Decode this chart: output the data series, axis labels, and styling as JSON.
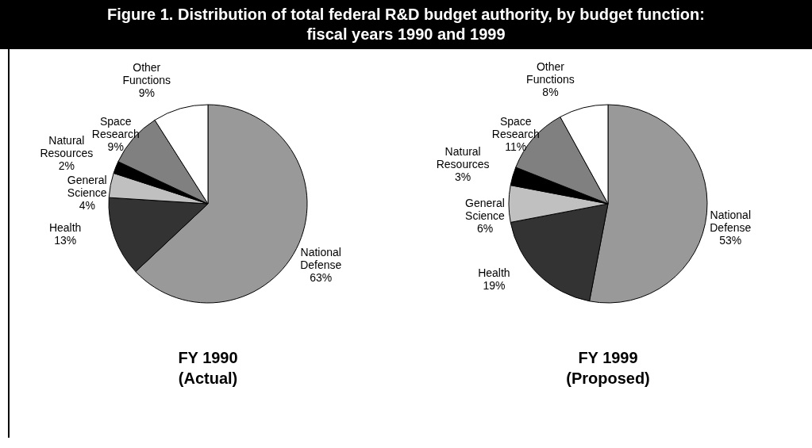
{
  "chart_data": [
    {
      "type": "pie",
      "title": "Figure 1.  Distribution of total federal R&D budget authority, by budget function: fiscal years 1990 and 1999",
      "xlabel": "FY 1990\n(Actual)",
      "categories": [
        "National Defense",
        "Health",
        "General Science",
        "Natural Resources",
        "Space Research",
        "Other Functions"
      ],
      "values": [
        63,
        13,
        4,
        2,
        9,
        9
      ],
      "value_labels": [
        "63%",
        "13%",
        "4%",
        "2%",
        "9%",
        "9%"
      ],
      "colors": [
        "#999999",
        "#333333",
        "#c0c0c0",
        "#000000",
        "#808080",
        "#ffffff"
      ],
      "legend": false
    },
    {
      "type": "pie",
      "xlabel": "FY 1999\n(Proposed)",
      "categories": [
        "National Defense",
        "Health",
        "General Science",
        "Natural Resources",
        "Space Research",
        "Other Functions"
      ],
      "values": [
        53,
        19,
        6,
        3,
        11,
        8
      ],
      "value_labels": [
        "53%",
        "19%",
        "6%",
        "3%",
        "11%",
        "8%"
      ],
      "colors": [
        "#999999",
        "#333333",
        "#c0c0c0",
        "#000000",
        "#808080",
        "#ffffff"
      ],
      "legend": false
    }
  ]
}
